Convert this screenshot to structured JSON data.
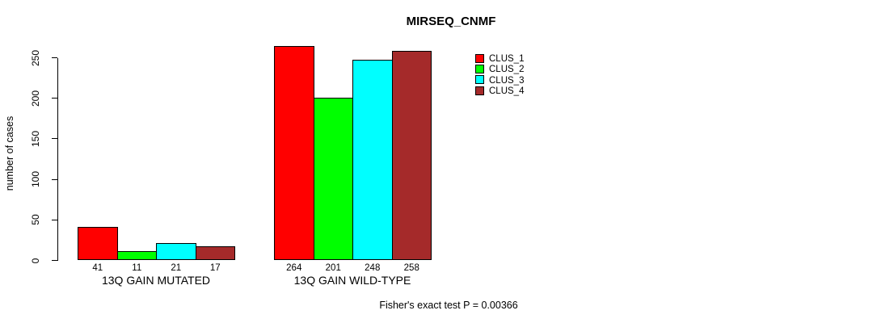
{
  "title": "MIRSEQ_CNMF",
  "footer": "Fisher's exact test P = 0.00366",
  "chart_data": {
    "type": "bar",
    "title": "MIRSEQ_CNMF",
    "xlabel": "",
    "ylabel": "number of cases",
    "categories": [
      "13Q GAIN MUTATED",
      "13Q GAIN WILD-TYPE"
    ],
    "series": [
      {
        "name": "CLUS_1",
        "color": "#FF0000",
        "values": [
          41,
          264
        ]
      },
      {
        "name": "CLUS_2",
        "color": "#00FF00",
        "values": [
          11,
          201
        ]
      },
      {
        "name": "CLUS_3",
        "color": "#00FFFF",
        "values": [
          21,
          248
        ]
      },
      {
        "name": "CLUS_4",
        "color": "#A52A2A",
        "values": [
          17,
          258
        ]
      }
    ],
    "bar_value_labels": [
      [
        41,
        11,
        21,
        17
      ],
      [
        264,
        201,
        248,
        258
      ]
    ],
    "yticks": [
      0,
      50,
      100,
      150,
      200,
      250
    ],
    "ylim": [
      0,
      250
    ],
    "grid": false,
    "legend_position": "top-right",
    "legend_entries": [
      "CLUS_1",
      "CLUS_2",
      "CLUS_3",
      "CLUS_4"
    ],
    "annotation": "Fisher's exact test P = 0.00366",
    "axis_color": "#000000",
    "bar_border_color": "#000000",
    "background_color": "#FFFFFF"
  }
}
